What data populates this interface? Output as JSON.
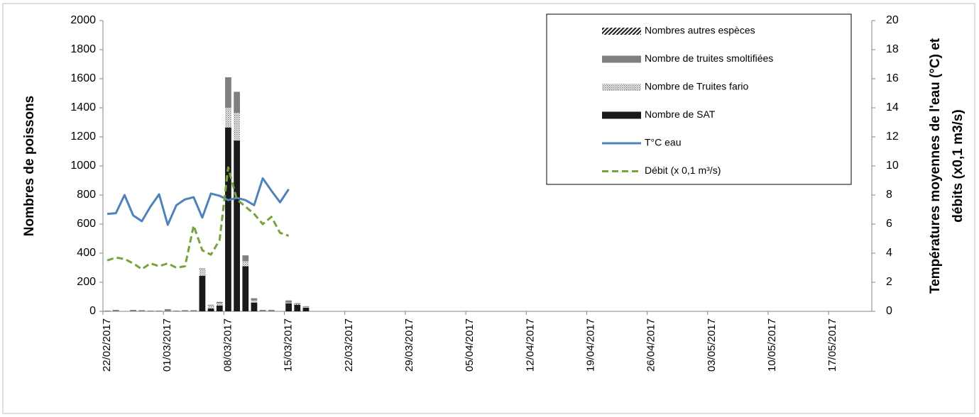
{
  "chart_data": {
    "type": "bar",
    "ylabel": "Nombres de poissons",
    "y2label": [
      "Températures moyennes de l'eau (°C) et",
      "débits (x0,1 m3/s)"
    ],
    "categories": [
      "22/02/2017",
      null,
      null,
      null,
      null,
      null,
      null,
      "01/03/2017",
      null,
      null,
      null,
      null,
      null,
      null,
      "08/03/2017",
      null,
      null,
      null,
      null,
      null,
      null,
      "15/03/2017",
      null,
      null,
      null,
      null,
      null,
      null,
      "22/03/2017",
      null,
      null,
      null,
      null,
      null,
      null,
      "29/03/2017",
      null,
      null,
      null,
      null,
      null,
      null,
      "05/04/2017",
      null,
      null,
      null,
      null,
      null,
      null,
      "12/04/2017",
      null,
      null,
      null,
      null,
      null,
      null,
      "19/04/2017",
      null,
      null,
      null,
      null,
      null,
      null,
      "26/04/2017",
      null,
      null,
      null,
      null,
      null,
      null,
      "03/05/2017",
      null,
      null,
      null,
      null,
      null,
      null,
      "10/05/2017",
      null,
      null,
      null,
      null,
      null,
      null,
      "17/05/2017",
      null,
      null,
      null,
      null
    ],
    "series": [
      {
        "name": "Nombre de SAT",
        "color": "#1a1a1a",
        "stacked": true,
        "values": [
          0,
          0,
          0,
          0,
          0,
          0,
          0,
          0,
          0,
          0,
          0,
          245,
          20,
          40,
          1265,
          1175,
          310,
          60,
          0,
          0,
          0,
          55,
          45,
          25,
          null,
          null,
          null,
          null,
          null,
          null,
          null,
          null,
          null,
          null,
          null,
          null,
          null,
          null,
          null,
          null,
          null,
          null,
          null,
          null,
          null,
          null,
          null,
          null,
          null,
          null,
          null,
          null,
          null,
          null,
          null,
          null,
          null,
          null,
          null,
          null,
          null,
          null,
          null,
          null,
          null,
          null,
          null,
          null,
          null,
          null,
          null,
          null,
          null,
          null,
          null,
          null,
          null,
          null,
          null,
          null,
          null,
          null,
          null,
          null,
          null,
          null,
          null,
          null,
          null
        ]
      },
      {
        "name": "Nombre de Truites fario",
        "color": "#8c8c8c",
        "pattern": "dots",
        "stacked": true,
        "values": [
          0,
          0,
          0,
          0,
          0,
          0,
          0,
          0,
          0,
          0,
          0,
          45,
          20,
          15,
          135,
          190,
          35,
          15,
          0,
          0,
          0,
          5,
          5,
          5,
          null,
          null,
          null,
          null,
          null,
          null,
          null,
          null,
          null,
          null,
          null,
          null,
          null,
          null,
          null,
          null,
          null,
          null,
          null,
          null,
          null,
          null,
          null,
          null,
          null,
          null,
          null,
          null,
          null,
          null,
          null,
          null,
          null,
          null,
          null,
          null,
          null,
          null,
          null,
          null,
          null,
          null,
          null,
          null,
          null,
          null,
          null,
          null,
          null,
          null,
          null,
          null,
          null,
          null,
          null,
          null,
          null,
          null,
          null,
          null,
          null,
          null,
          null,
          null,
          null
        ]
      },
      {
        "name": "Nombre de truites smoltifiées",
        "color": "#808080",
        "stacked": true,
        "values": [
          5,
          10,
          0,
          10,
          8,
          5,
          5,
          15,
          5,
          8,
          8,
          5,
          5,
          10,
          210,
          145,
          40,
          15,
          10,
          10,
          0,
          15,
          6,
          5,
          null,
          null,
          null,
          null,
          null,
          null,
          null,
          null,
          null,
          null,
          null,
          null,
          null,
          null,
          null,
          null,
          null,
          null,
          null,
          null,
          null,
          null,
          null,
          null,
          null,
          null,
          null,
          null,
          null,
          null,
          null,
          null,
          null,
          null,
          null,
          null,
          null,
          null,
          null,
          null,
          null,
          null,
          null,
          null,
          null,
          null,
          null,
          null,
          null,
          null,
          null,
          null,
          null,
          null,
          null,
          null,
          null,
          null,
          null,
          null,
          null,
          null,
          null,
          null,
          null
        ]
      },
      {
        "name": "Nombres autres espèces",
        "color": "#1a1a1a",
        "pattern": "hatch",
        "stacked": true,
        "values": [
          0,
          0,
          0,
          0,
          0,
          0,
          0,
          0,
          0,
          0,
          0,
          0,
          0,
          0,
          0,
          0,
          0,
          0,
          0,
          0,
          0,
          0,
          0,
          0,
          null,
          null,
          null,
          null,
          null,
          null,
          null,
          null,
          null,
          null,
          null,
          null,
          null,
          null,
          null,
          null,
          null,
          null,
          null,
          null,
          null,
          null,
          null,
          null,
          null,
          null,
          null,
          null,
          null,
          null,
          null,
          null,
          null,
          null,
          null,
          null,
          null,
          null,
          null,
          null,
          null,
          null,
          null,
          null,
          null,
          null,
          null,
          null,
          null,
          null,
          null,
          null,
          null,
          null,
          null,
          null,
          null,
          null,
          null,
          null,
          null,
          null,
          null,
          null,
          null
        ]
      },
      {
        "name": "T°C eau",
        "color": "#4f81bd",
        "type": "line",
        "axis": "y2",
        "values": [
          6.7,
          6.75,
          8.0,
          6.6,
          6.2,
          7.2,
          8.05,
          5.95,
          7.3,
          7.7,
          7.85,
          6.45,
          8.1,
          7.95,
          7.65,
          7.8,
          7.65,
          7.3,
          9.15,
          8.3,
          7.5,
          8.4,
          null,
          null,
          null,
          null,
          null,
          null,
          null,
          null,
          null,
          null,
          null,
          null,
          null,
          null,
          null,
          null,
          null,
          null,
          null,
          null,
          null,
          null,
          null,
          null,
          null,
          null,
          null,
          null,
          null,
          null,
          null,
          null,
          null,
          null,
          null,
          null,
          null,
          null,
          null,
          null,
          null,
          null,
          null,
          null,
          null,
          null,
          null,
          null,
          null,
          null,
          null,
          null,
          null,
          null,
          null,
          null,
          null,
          null,
          null,
          null,
          null,
          null,
          null,
          null,
          null,
          null,
          null
        ]
      },
      {
        "name": "Débit (x 0,1 m³/s)",
        "color": "#77a33a",
        "type": "line",
        "dashed": true,
        "axis": "y2",
        "values": [
          3.5,
          3.7,
          3.6,
          3.3,
          2.9,
          3.3,
          3.1,
          3.3,
          3.0,
          3.1,
          5.9,
          4.2,
          3.9,
          4.9,
          9.9,
          7.7,
          7.2,
          6.7,
          6.0,
          6.5,
          5.4,
          5.2,
          null,
          null,
          null,
          null,
          null,
          null,
          null,
          null,
          null,
          null,
          null,
          null,
          null,
          null,
          null,
          null,
          null,
          null,
          null,
          null,
          null,
          null,
          null,
          null,
          null,
          null,
          null,
          null,
          null,
          null,
          null,
          null,
          null,
          null,
          null,
          null,
          null,
          null,
          null,
          null,
          null,
          null,
          null,
          null,
          null,
          null,
          null,
          null,
          null,
          null,
          null,
          null,
          null,
          null,
          null,
          null,
          null,
          null,
          null,
          null,
          null,
          null,
          null,
          null,
          null,
          null,
          null
        ]
      }
    ],
    "ylim": [
      0,
      2000
    ],
    "yticks": [
      0,
      200,
      400,
      600,
      800,
      1000,
      1200,
      1400,
      1600,
      1800,
      2000
    ],
    "y2lim": [
      0,
      20
    ],
    "y2ticks": [
      0,
      2,
      4,
      6,
      8,
      10,
      12,
      14,
      16,
      18,
      20
    ],
    "grid": false,
    "legend": "upper right"
  }
}
